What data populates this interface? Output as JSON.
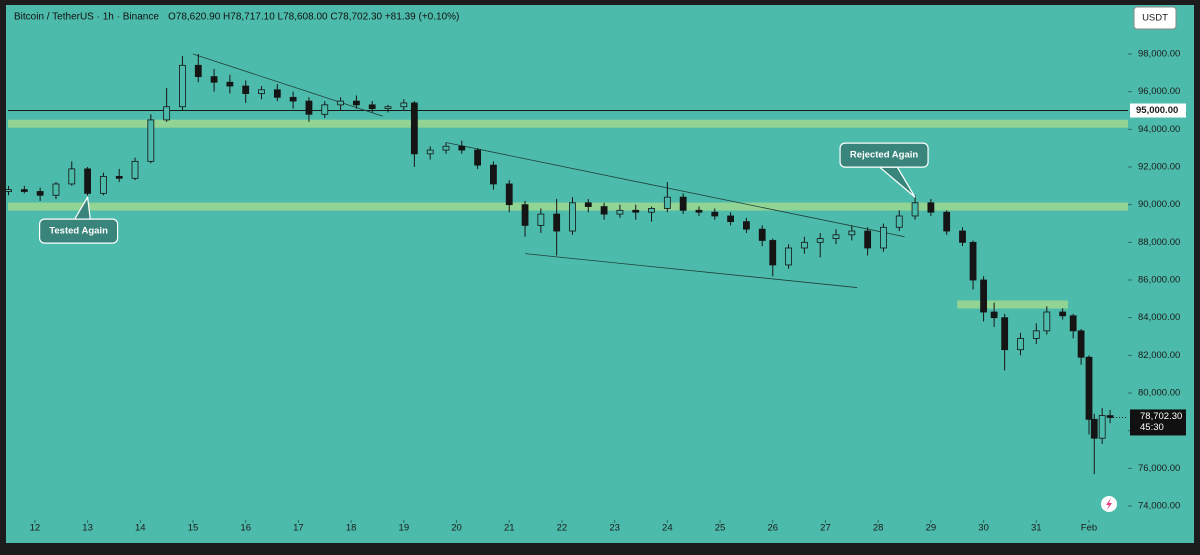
{
  "chart_data": {
    "type": "candlestick",
    "title": "Bitcoin / TetherUS · 1h · Binance",
    "ohlc_text": "O78,620.90 H78,717.10 L78,608.00 C78,702.30 +81.39 (+0.10%)",
    "currency": "USDT",
    "x": [
      11.5,
      11.8,
      12.1,
      12.4,
      12.7,
      13.0,
      13.3,
      13.6,
      13.9,
      14.2,
      14.5,
      14.8,
      15.1,
      15.4,
      15.7,
      16.0,
      16.3,
      16.6,
      16.9,
      17.2,
      17.5,
      17.8,
      18.1,
      18.4,
      18.7,
      19.0,
      19.2,
      19.5,
      19.8,
      20.1,
      20.4,
      20.7,
      21.0,
      21.3,
      21.6,
      21.9,
      22.2,
      22.5,
      22.8,
      23.1,
      23.4,
      23.7,
      24.0,
      24.3,
      24.6,
      24.9,
      25.2,
      25.5,
      25.8,
      26.0,
      26.3,
      26.6,
      26.9,
      27.2,
      27.5,
      27.8,
      28.1,
      28.4,
      28.7,
      29.0,
      29.3,
      29.6,
      29.8,
      30.0,
      30.2,
      30.4,
      30.7,
      31.0,
      31.2,
      31.5,
      31.7,
      31.85,
      32.0,
      32.1,
      32.25,
      32.4
    ],
    "open": [
      90700,
      90800,
      90700,
      90500,
      91100,
      91900,
      90600,
      91500,
      91400,
      92300,
      94500,
      95200,
      97400,
      96800,
      96500,
      96300,
      95900,
      96100,
      95700,
      95500,
      94800,
      95300,
      95500,
      95300,
      95100,
      95200,
      95400,
      92700,
      92900,
      93100,
      92900,
      92100,
      91100,
      90000,
      88900,
      89500,
      88600,
      90100,
      89900,
      89500,
      89700,
      89600,
      89800,
      90400,
      89700,
      89600,
      89400,
      89100,
      88700,
      88100,
      86800,
      87700,
      88000,
      88200,
      88400,
      88600,
      87700,
      88800,
      89400,
      90100,
      89600,
      88600,
      88000,
      86000,
      84300,
      84000,
      82300,
      82900,
      83300,
      84300,
      84100,
      83300,
      81900,
      78600,
      77600,
      78800
    ],
    "high": [
      91000,
      91000,
      90900,
      91200,
      92300,
      92000,
      91700,
      91900,
      92500,
      94800,
      96200,
      97900,
      98000,
      97200,
      96900,
      96600,
      96300,
      96400,
      96000,
      95700,
      95500,
      95700,
      95800,
      95500,
      95300,
      95600,
      95500,
      93100,
      93300,
      93400,
      93000,
      92300,
      91300,
      90200,
      89800,
      90300,
      90400,
      90300,
      90100,
      90000,
      90000,
      89900,
      91200,
      90600,
      89900,
      89800,
      89600,
      89300,
      88900,
      88200,
      87900,
      88300,
      88500,
      88700,
      88900,
      88800,
      89000,
      89700,
      90500,
      90300,
      89700,
      88800,
      88100,
      86200,
      84800,
      84200,
      83200,
      83700,
      84600,
      84500,
      84200,
      83400,
      82000,
      78900,
      79200,
      79100
    ],
    "low": [
      90500,
      90600,
      90200,
      90300,
      91000,
      90400,
      90500,
      91200,
      91300,
      92200,
      94400,
      95000,
      96500,
      96000,
      95900,
      95400,
      95600,
      95500,
      95100,
      94400,
      94600,
      95000,
      95100,
      94900,
      94900,
      95000,
      92000,
      92400,
      92700,
      92700,
      91900,
      90800,
      89600,
      88300,
      88500,
      87300,
      88400,
      89600,
      89200,
      89300,
      89200,
      89100,
      89600,
      89500,
      89400,
      89200,
      88900,
      88500,
      87800,
      86200,
      86600,
      87400,
      87200,
      87900,
      88100,
      87300,
      87500,
      88600,
      89200,
      89400,
      88400,
      87800,
      85500,
      83800,
      83500,
      81200,
      82000,
      82600,
      83100,
      83900,
      82900,
      81500,
      77800,
      75700,
      77300,
      78400
    ],
    "close": [
      90800,
      90700,
      90500,
      91100,
      91900,
      90600,
      91500,
      91400,
      92300,
      94500,
      95200,
      97400,
      96800,
      96500,
      96300,
      95900,
      96100,
      95700,
      95500,
      94800,
      95300,
      95500,
      95300,
      95100,
      95200,
      95400,
      92700,
      92900,
      93100,
      92900,
      92100,
      91100,
      90000,
      88900,
      89500,
      88600,
      90100,
      89900,
      89500,
      89700,
      89600,
      89800,
      90400,
      89700,
      89600,
      89400,
      89100,
      88700,
      88100,
      86800,
      87700,
      88000,
      88200,
      88400,
      88600,
      87700,
      88800,
      89400,
      90100,
      89600,
      88600,
      88000,
      86000,
      84300,
      84000,
      82300,
      82900,
      83300,
      84300,
      84100,
      83300,
      81900,
      78600,
      77600,
      78800,
      78702.3
    ],
    "xlim": [
      11.49,
      32.74
    ],
    "ylim": [
      73257,
      100443
    ],
    "xticks": [
      12,
      13,
      14,
      15,
      16,
      17,
      18,
      19,
      20,
      21,
      22,
      23,
      24,
      25,
      26,
      27,
      28,
      29,
      30,
      31,
      {
        "value": 32,
        "label": "Feb"
      }
    ],
    "yticks": [
      {
        "value": 98000,
        "label": "98,000.00"
      },
      {
        "value": 96000,
        "label": "96,000.00"
      },
      {
        "value": 94000,
        "label": "94,000.00"
      },
      {
        "value": 92000,
        "label": "92,000.00"
      },
      {
        "value": 90000,
        "label": "90,000.00"
      },
      {
        "value": 88000,
        "label": "88,000.00"
      },
      {
        "value": 86000,
        "label": "86,000.00"
      },
      {
        "value": 84000,
        "label": "84,000.00"
      },
      {
        "value": 82000,
        "label": "82,000.00"
      },
      {
        "value": 80000,
        "label": "80,000.00"
      },
      {
        "value": 78000,
        "label": "78,000.00"
      },
      {
        "value": 76000,
        "label": "76,000.00"
      },
      {
        "value": 74000,
        "label": "74,000.00"
      }
    ],
    "hline": {
      "value": 95000,
      "label": "95,000.00"
    },
    "last_price": {
      "value": 78702.3,
      "label": "78,702.30",
      "countdown": "45:30"
    },
    "zones": [
      {
        "value": 94300
      },
      {
        "value": 89900
      },
      {
        "value": 84700,
        "x": [
          29.5,
          31.6
        ]
      }
    ],
    "trendlines": [
      {
        "x": [
          15.0,
          18.6
        ],
        "y": [
          98000,
          94700
        ]
      },
      {
        "x": [
          19.8,
          28.5
        ],
        "y": [
          93300,
          88300
        ]
      },
      {
        "x": [
          21.3,
          27.6
        ],
        "y": [
          87400,
          85600
        ]
      }
    ],
    "annotations": [
      {
        "text": "Tested Again",
        "x": 13.0,
        "y": 90400
      },
      {
        "text": "Rejected Again",
        "x": 28.7,
        "y": 90400
      }
    ],
    "color": "#151515",
    "zone_color": "#a9dc8c"
  }
}
